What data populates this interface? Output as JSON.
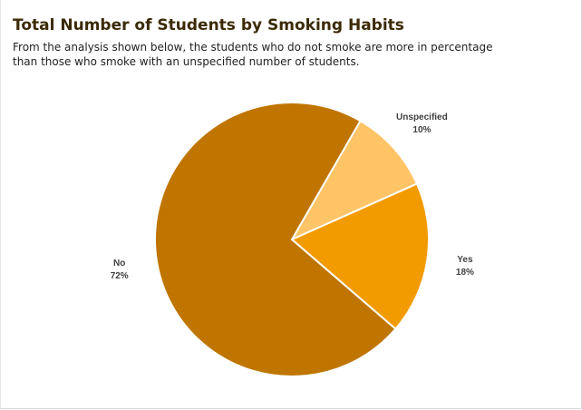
{
  "chart_data": {
    "type": "pie",
    "title": "Total Number of Students by Smoking Habits",
    "subtitle": "From the analysis shown below, the students who do not smoke are more in percentage than those who smoke with an unspecified number of students.",
    "categories": [
      "Unspecified",
      "Yes",
      "No"
    ],
    "values": [
      10,
      18,
      72
    ],
    "value_labels": [
      "10%",
      "18%",
      "72%"
    ],
    "colors": [
      "#ffc466",
      "#f29b00",
      "#bf7500"
    ],
    "start_angle_deg": 30,
    "direction": "clockwise",
    "legend": "none",
    "slice_border_color": "#ffffff"
  }
}
